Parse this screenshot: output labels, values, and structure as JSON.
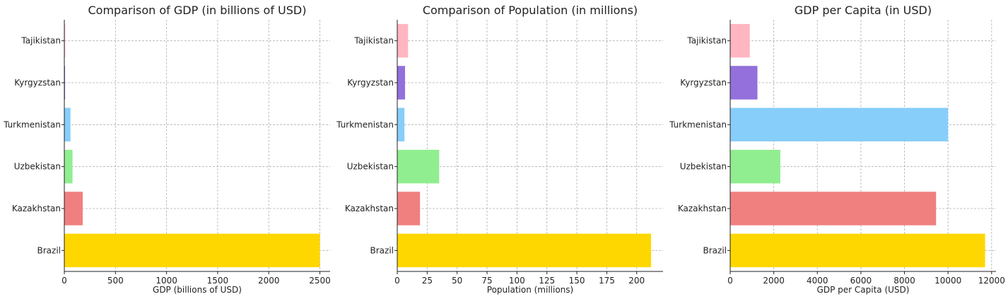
{
  "chart_data": [
    {
      "type": "bar",
      "orientation": "horizontal",
      "title": "Comparison of GDP (in billions of USD)",
      "xlabel": "GDP (billions of USD)",
      "ylabel": "",
      "categories": [
        "Brazil",
        "Kazakhstan",
        "Uzbekistan",
        "Turkmenistan",
        "Kyrgyzstan",
        "Tajikistan"
      ],
      "values": [
        2500,
        180,
        80,
        60,
        7,
        8
      ],
      "colors": [
        "#ffd700",
        "#f08080",
        "#90ee90",
        "#87cefa",
        "#9370db",
        "#ffb6c1"
      ],
      "xlim": [
        0,
        2600
      ],
      "xticks": [
        0,
        500,
        1000,
        1500,
        2000,
        2500
      ],
      "grid": true
    },
    {
      "type": "bar",
      "orientation": "horizontal",
      "title": "Comparison of Population (in millions)",
      "xlabel": "Population (millions)",
      "ylabel": "",
      "categories": [
        "Brazil",
        "Kazakhstan",
        "Uzbekistan",
        "Turkmenistan",
        "Kyrgyzstan",
        "Tajikistan"
      ],
      "values": [
        212,
        19,
        35,
        6,
        6.5,
        9
      ],
      "colors": [
        "#ffd700",
        "#f08080",
        "#90ee90",
        "#87cefa",
        "#9370db",
        "#ffb6c1"
      ],
      "xlim": [
        0,
        222
      ],
      "xticks": [
        0,
        25,
        50,
        75,
        100,
        125,
        150,
        175,
        200
      ],
      "grid": true
    },
    {
      "type": "bar",
      "orientation": "horizontal",
      "title": "GDP per Capita (in USD)",
      "xlabel": "GDP per Capita (USD)",
      "ylabel": "",
      "categories": [
        "Brazil",
        "Kazakhstan",
        "Uzbekistan",
        "Turkmenistan",
        "Kyrgyzstan",
        "Tajikistan"
      ],
      "values": [
        11700,
        9450,
        2300,
        10000,
        1250,
        900
      ],
      "colors": [
        "#ffd700",
        "#f08080",
        "#90ee90",
        "#87cefa",
        "#9370db",
        "#ffb6c1"
      ],
      "xlim": [
        0,
        12200
      ],
      "xticks": [
        0,
        2000,
        4000,
        6000,
        8000,
        10000,
        12000
      ],
      "grid": true
    }
  ]
}
